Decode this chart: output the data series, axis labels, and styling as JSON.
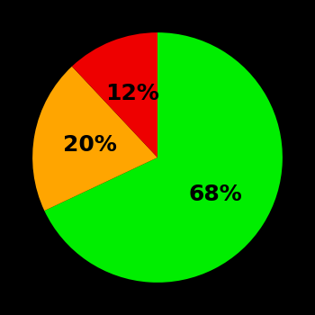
{
  "slices": [
    68,
    20,
    12
  ],
  "colors": [
    "#00ee00",
    "#ffa500",
    "#ee0000"
  ],
  "labels": [
    "68%",
    "20%",
    "12%"
  ],
  "background_color": "#000000",
  "startangle": 90,
  "label_fontsize": 18,
  "label_fontweight": "bold",
  "label_r": 0.55
}
